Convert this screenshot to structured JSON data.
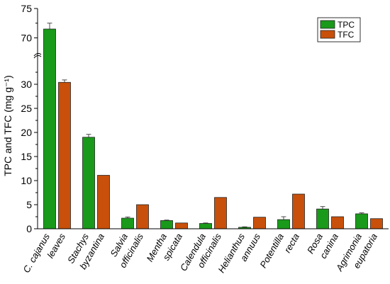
{
  "chart_data": {
    "type": "bar",
    "categories": [
      [
        "C. cajanus",
        "leaves"
      ],
      [
        "Stachys",
        "byzantina"
      ],
      [
        "Salvia",
        "officinalis"
      ],
      [
        "Mentha",
        "spicata"
      ],
      [
        "Calendula",
        "officinalis"
      ],
      [
        "Helianthus",
        "annuus"
      ],
      [
        "Potentilla",
        "recta"
      ],
      [
        "Rosa",
        "canina"
      ],
      [
        "Agrimonia",
        "eupatoria"
      ]
    ],
    "series": [
      {
        "name": "TPC",
        "color": "#1a9a1a",
        "values": [
          71.5,
          19.0,
          2.2,
          1.7,
          1.1,
          0.3,
          1.9,
          4.1,
          3.1
        ],
        "errors": [
          1.0,
          0.6,
          0.25,
          0.1,
          0.1,
          0.1,
          0.6,
          0.5,
          0.2
        ]
      },
      {
        "name": "TFC",
        "color": "#c8500a",
        "values": [
          30.4,
          11.1,
          5.0,
          1.2,
          6.5,
          2.4,
          7.2,
          2.5,
          2.1
        ],
        "errors": [
          0.5,
          0,
          0,
          0,
          0,
          0,
          0,
          0,
          0
        ]
      }
    ],
    "ylabel": "TPC and TFC (mg g⁻¹)",
    "y_lower_segment": {
      "range": [
        0,
        35
      ],
      "ticks": [
        0,
        5,
        10,
        15,
        20,
        25,
        30
      ]
    },
    "y_upper_segment": {
      "range": [
        68,
        75
      ],
      "ticks": [
        70,
        75
      ]
    },
    "axis_break": true,
    "legend_position": "top-right",
    "grid": false
  }
}
